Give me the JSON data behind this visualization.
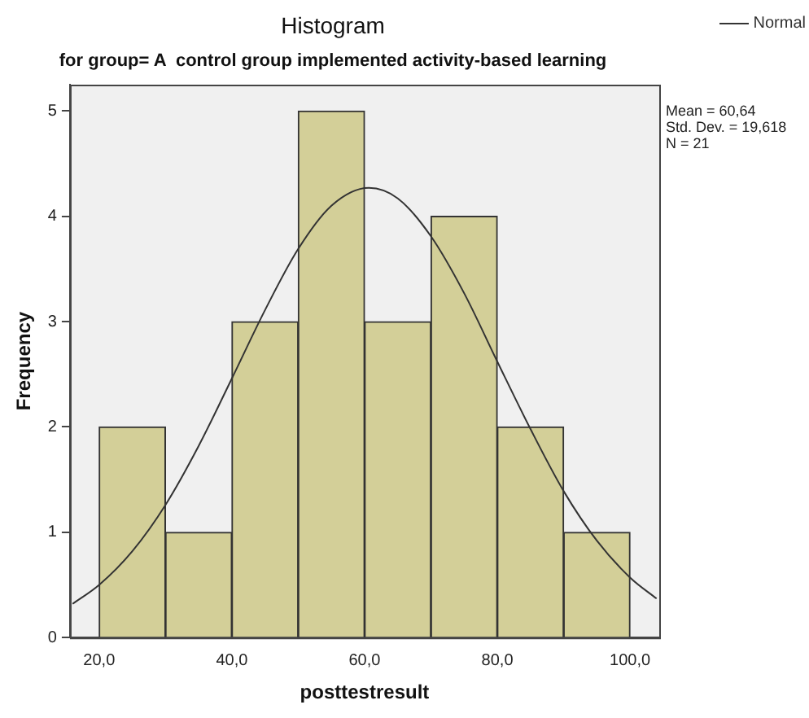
{
  "chart_data": {
    "type": "histogram",
    "title": "Histogram",
    "subtitle": "for group= A  control group implemented activity-based learning",
    "xlabel": "posttestresult",
    "ylabel": "Frequency",
    "bins": [
      20,
      30,
      40,
      50,
      60,
      70,
      80,
      90,
      100
    ],
    "values": [
      2,
      1,
      3,
      5,
      3,
      4,
      2,
      1
    ],
    "color": "#d3cf98",
    "series": [
      {
        "name": "Normal",
        "type": "line",
        "color": "#333333",
        "x": [
          16,
          20,
          25,
          30,
          35,
          40,
          45,
          50,
          55,
          60.64,
          65,
          70,
          75,
          80,
          85,
          90,
          95,
          100,
          104
        ],
        "values": [
          0.32,
          0.5,
          0.82,
          1.26,
          1.82,
          2.46,
          3.11,
          3.69,
          4.1,
          4.27,
          4.17,
          3.81,
          3.27,
          2.62,
          1.98,
          1.39,
          0.92,
          0.57,
          0.37
        ]
      }
    ],
    "annotations": [
      "Mean = 60,64",
      "Std. Dev. = 19,618",
      "N = 21"
    ],
    "xlim": [
      15.6,
      104.4
    ],
    "xticks": [
      {
        "value": 20,
        "label": "20,0"
      },
      {
        "value": 40,
        "label": "40,0"
      },
      {
        "value": 60,
        "label": "60,0"
      },
      {
        "value": 80,
        "label": "80,0"
      },
      {
        "value": 100,
        "label": "100,0"
      }
    ],
    "ylim": [
      0,
      5.25
    ],
    "yticks": [
      0,
      1,
      2,
      3,
      4,
      5
    ],
    "grid": false,
    "legend": "top right"
  }
}
